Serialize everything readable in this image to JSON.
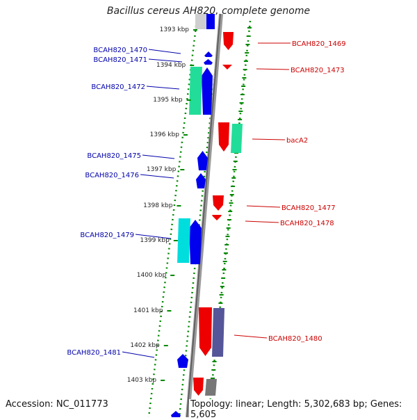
{
  "title": "Bacillus cereus AH820, complete genome",
  "footer": {
    "accession": "Accession: NC_011773",
    "topology": "Topology: linear; Length: 5,302,683 bp; Genes: 5,605"
  },
  "colors": {
    "left_label": "#0000aa",
    "right_label": "#cc0000",
    "forward_gene": "#0000ee",
    "reverse_gene": "#ee0000",
    "cds_green": "#22dd99",
    "cds_cyan": "#00dddd",
    "cds_slate": "#555599",
    "cds_gray": "#777777",
    "track_line": "#008800",
    "axis": "#888888"
  },
  "ticks": [
    "1393 kbp",
    "1394 kbp",
    "1395 kbp",
    "1396 kbp",
    "1397 kbp",
    "1398 kbp",
    "1399 kbp",
    "1400 kbp",
    "1401 kbp",
    "1402 kbp",
    "1403 kbp"
  ],
  "left_labels": [
    "BCAH820_1470",
    "BCAH820_1471",
    "BCAH820_1472",
    "BCAH820_1475",
    "BCAH820_1476",
    "BCAH820_1479",
    "BCAH820_1481"
  ],
  "right_labels": [
    "BCAH820_1469",
    "BCAH820_1473",
    "bacA2",
    "BCAH820_1477",
    "BCAH820_1478",
    "BCAH820_1480"
  ]
}
